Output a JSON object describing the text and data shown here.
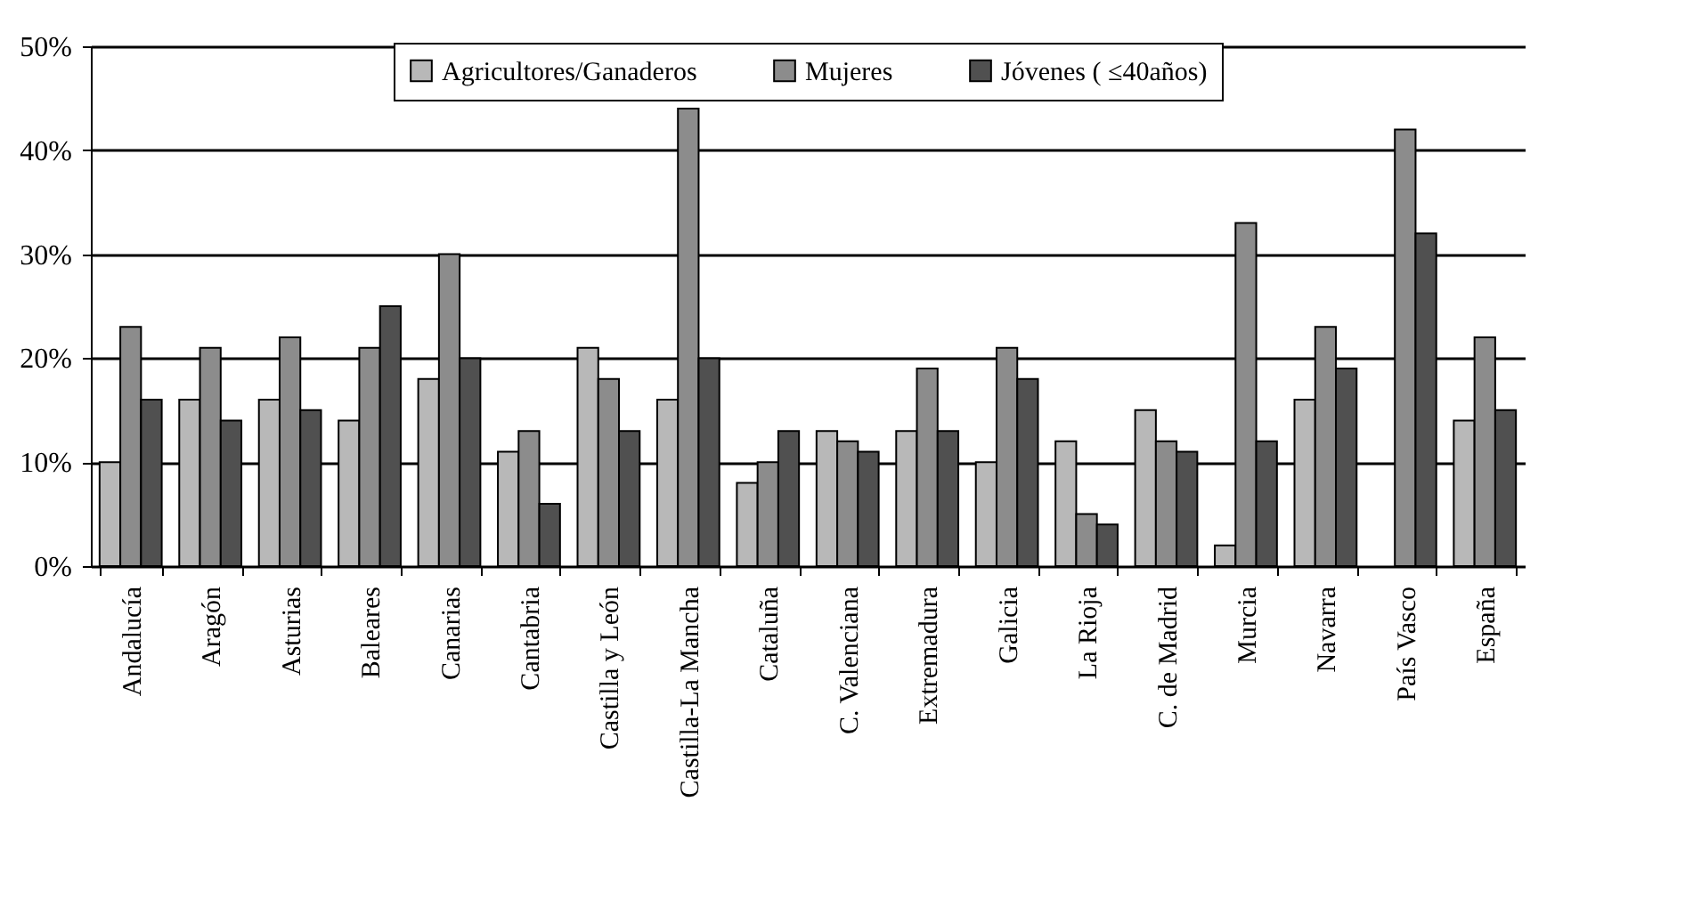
{
  "chart_data": {
    "type": "bar",
    "categories": [
      "Andalucía",
      "Aragón",
      "Asturias",
      "Baleares",
      "Canarias",
      "Cantabria",
      "Castilla y León",
      "Castilla-La Mancha",
      "Cataluña",
      "C. Valenciana",
      "Extremadura",
      "Galicia",
      "La Rioja",
      "C. de Madrid",
      "Murcia",
      "Navarra",
      "País Vasco",
      "España"
    ],
    "series": [
      {
        "name": "Agricultores/Ganaderos",
        "color": "#b8b8b8",
        "values": [
          10,
          16,
          16,
          14,
          18,
          11,
          21,
          16,
          8,
          13,
          13,
          10,
          12,
          15,
          2,
          16,
          null,
          14
        ]
      },
      {
        "name": "Mujeres",
        "color": "#8c8c8c",
        "values": [
          23,
          21,
          22,
          21,
          30,
          13,
          18,
          44,
          10,
          12,
          19,
          21,
          5,
          12,
          33,
          23,
          42,
          22
        ]
      },
      {
        "name": "Jóvenes ( ≤40años)",
        "color": "#505050",
        "values": [
          16,
          14,
          15,
          25,
          20,
          6,
          13,
          20,
          13,
          11,
          13,
          18,
          4,
          11,
          12,
          19,
          32,
          15
        ]
      }
    ],
    "ylim": [
      0,
      50
    ],
    "yticks": [
      {
        "value": 0,
        "label": "0%"
      },
      {
        "value": 10,
        "label": "10%"
      },
      {
        "value": 20,
        "label": "20%"
      },
      {
        "value": 30,
        "label": "30%"
      },
      {
        "value": 40,
        "label": "40%"
      },
      {
        "value": 50,
        "label": "50%"
      }
    ],
    "grid": "y",
    "legend": "top"
  }
}
